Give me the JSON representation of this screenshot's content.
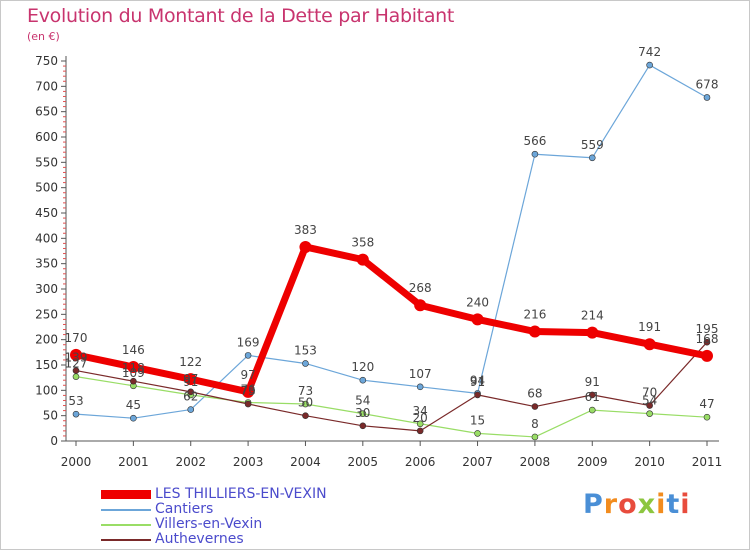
{
  "chart_data": {
    "type": "line",
    "title": "Evolution du Montant de la Dette par Habitant",
    "unit_label": "(en €)",
    "x": [
      "2000",
      "2001",
      "2002",
      "2003",
      "2004",
      "2005",
      "2006",
      "2007",
      "2008",
      "2009",
      "2010",
      "2011"
    ],
    "ylim": [
      0,
      750
    ],
    "yticks": [
      "0",
      "50",
      "100",
      "150",
      "200",
      "250",
      "300",
      "350",
      "400",
      "450",
      "500",
      "550",
      "600",
      "650",
      "700",
      "750"
    ],
    "grid": false,
    "legend_position": "bottom-left",
    "series": [
      {
        "name": "LES THILLIERS-EN-VEXIN",
        "color": "#ee0000",
        "values": [
          170,
          146,
          122,
          97,
          383,
          358,
          268,
          240,
          216,
          214,
          191,
          168
        ],
        "labels": [
          "170",
          "146",
          "122",
          "97",
          "383",
          "358",
          "268",
          "240",
          "216",
          "214",
          "191",
          "168"
        ]
      },
      {
        "name": "Cantiers",
        "color": "#6ca6d9",
        "values": [
          53,
          45,
          62,
          169,
          153,
          120,
          107,
          94,
          566,
          559,
          742,
          678
        ],
        "labels": [
          "53",
          "45",
          "62",
          "169",
          "153",
          "120",
          "107",
          "94",
          "566",
          "559",
          "742",
          "678"
        ]
      },
      {
        "name": "Villers-en-Vexin",
        "color": "#99dd66",
        "values": [
          127,
          109,
          91,
          76,
          73,
          54,
          34,
          15,
          8,
          61,
          54,
          47
        ],
        "labels": [
          "127",
          "109",
          "91",
          "76",
          "73",
          "54",
          "34",
          "15",
          "8",
          "61",
          "54",
          "47"
        ]
      },
      {
        "name": "Authevernes",
        "color": "#7a2a2a",
        "values": [
          139,
          118,
          97,
          73,
          50,
          30,
          20,
          91,
          68,
          91,
          70,
          195
        ],
        "labels": [
          "139",
          "118",
          "97",
          "73",
          "50",
          "30",
          "20",
          "91",
          "68",
          "91",
          "70",
          "195"
        ]
      }
    ]
  },
  "logo": {
    "text": "Proxiti",
    "letters": [
      "P",
      "r",
      "o",
      "x",
      "i",
      "t",
      "i"
    ],
    "colors": [
      "#4a8fd6",
      "#f28c1e",
      "#e84c3d",
      "#8cc63f",
      "#f28c1e",
      "#4a8fd6",
      "#e84c3d"
    ]
  }
}
